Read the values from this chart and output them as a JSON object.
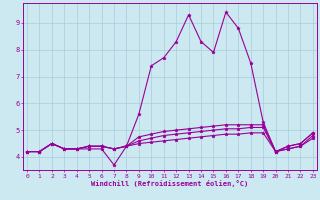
{
  "xlabel": "Windchill (Refroidissement éolien,°C)",
  "background_color": "#cce8f0",
  "grid_color": "#aaccdd",
  "line_color": "#990099",
  "x_ticks": [
    0,
    1,
    2,
    3,
    4,
    5,
    6,
    7,
    8,
    9,
    10,
    11,
    12,
    13,
    14,
    15,
    16,
    17,
    18,
    19,
    20,
    21,
    22,
    23
  ],
  "y_ticks": [
    4,
    5,
    6,
    7,
    8,
    9
  ],
  "ylim": [
    3.5,
    9.75
  ],
  "xlim": [
    -0.3,
    23.3
  ],
  "series": [
    [
      4.2,
      4.2,
      4.5,
      4.3,
      4.3,
      4.3,
      4.3,
      3.7,
      4.4,
      5.6,
      7.4,
      7.7,
      8.3,
      9.3,
      8.3,
      7.9,
      9.4,
      8.8,
      7.5,
      5.3,
      4.2,
      4.4,
      4.5,
      4.9
    ],
    [
      4.2,
      4.2,
      4.5,
      4.3,
      4.3,
      4.4,
      4.4,
      4.3,
      4.4,
      4.75,
      4.85,
      4.95,
      5.0,
      5.05,
      5.1,
      5.15,
      5.2,
      5.2,
      5.2,
      5.2,
      4.2,
      4.4,
      4.5,
      4.9
    ],
    [
      4.2,
      4.2,
      4.5,
      4.3,
      4.3,
      4.4,
      4.4,
      4.3,
      4.4,
      4.6,
      4.7,
      4.8,
      4.85,
      4.9,
      4.95,
      5.0,
      5.05,
      5.05,
      5.1,
      5.1,
      4.2,
      4.3,
      4.4,
      4.8
    ],
    [
      4.2,
      4.2,
      4.5,
      4.3,
      4.3,
      4.4,
      4.4,
      4.3,
      4.4,
      4.5,
      4.55,
      4.6,
      4.65,
      4.7,
      4.75,
      4.8,
      4.85,
      4.85,
      4.9,
      4.9,
      4.2,
      4.3,
      4.4,
      4.7
    ]
  ],
  "marker": "*",
  "markersize": 2.5,
  "linewidth": 0.8,
  "tick_fontsize": 4.5,
  "xlabel_fontsize": 5.0
}
